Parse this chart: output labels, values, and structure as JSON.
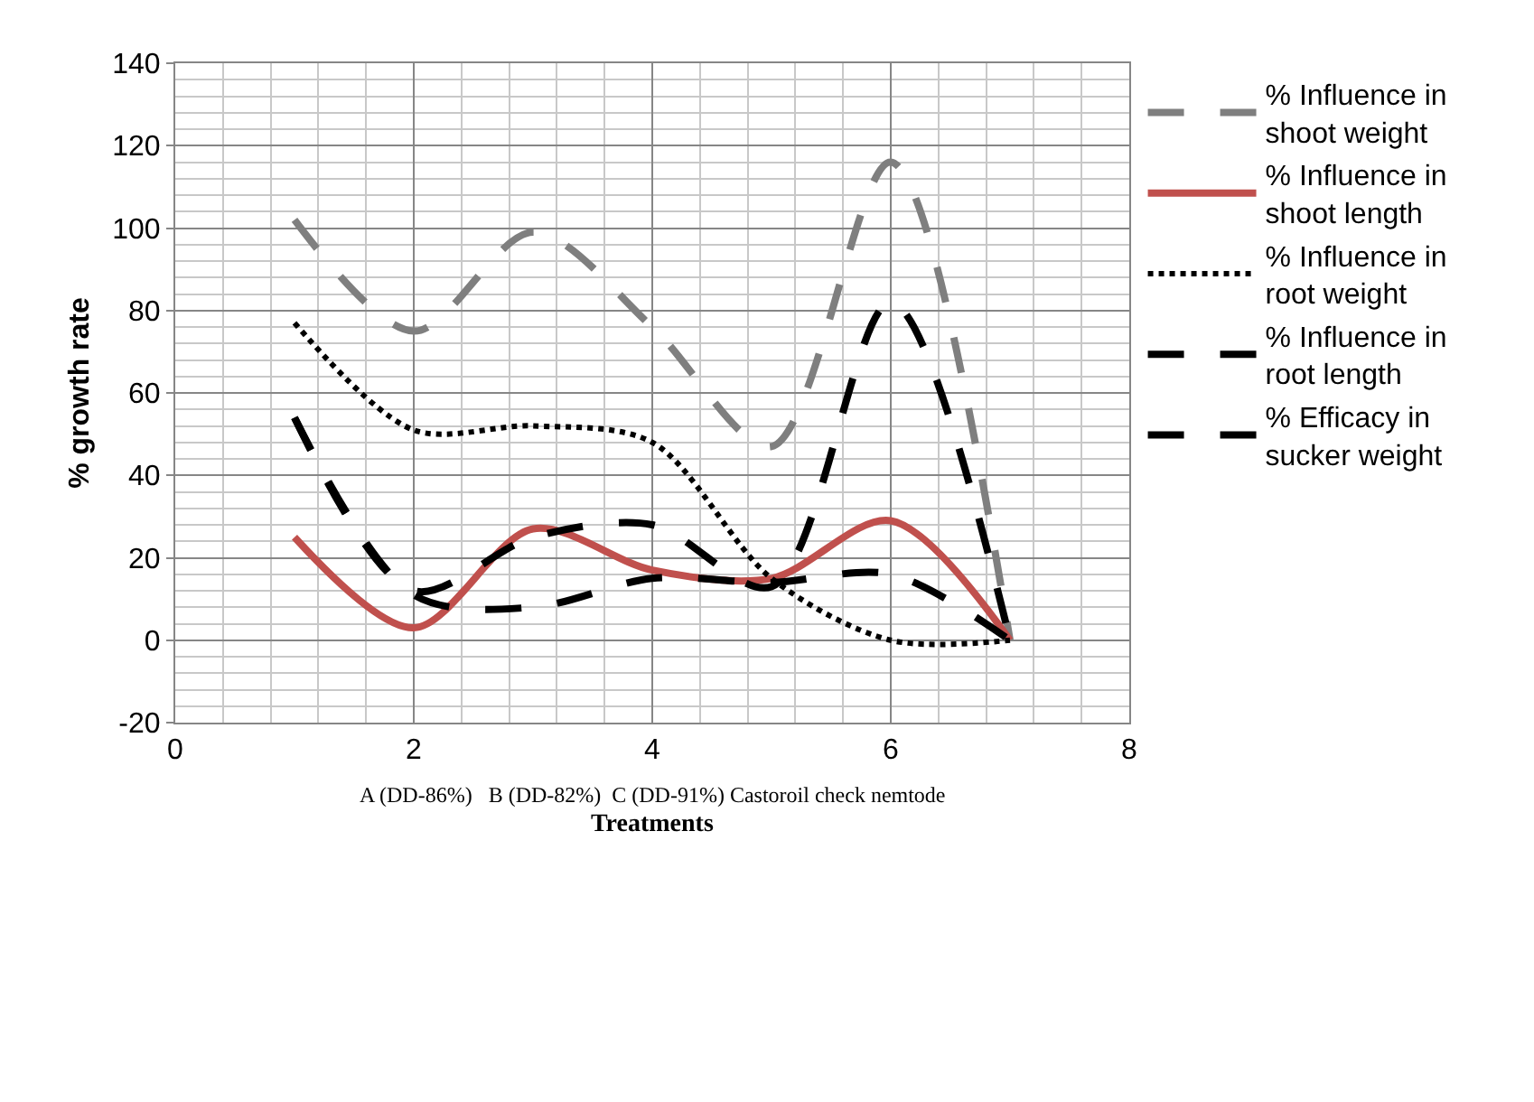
{
  "chart_data": {
    "type": "line",
    "xlabel": "Treatments",
    "ylabel": "% growth rate",
    "x": [
      1,
      2,
      3,
      4,
      5,
      6,
      7
    ],
    "xlim": [
      0,
      8
    ],
    "xticks": [
      0,
      2,
      4,
      6,
      8
    ],
    "ylim": [
      -20,
      140
    ],
    "yticks": [
      -20,
      0,
      20,
      40,
      60,
      80,
      100,
      120,
      140
    ],
    "grid": true,
    "legend": "right",
    "marker": "none",
    "annotations": [
      "A (DD-86%)   B (DD-82%)  C (DD-91%) Castoroil check nemtode"
    ],
    "series": [
      {
        "name": "% Influence in shoot weight",
        "color": "#7f7f7f",
        "line_style": "dashed",
        "values": [
          102,
          75,
          99,
          76,
          47,
          116,
          0
        ]
      },
      {
        "name": "% Influence in shoot length",
        "color": "#c0504d",
        "line_style": "solid",
        "values": [
          25,
          3,
          27,
          17,
          15,
          29,
          0
        ]
      },
      {
        "name": "% Influence in root weight",
        "color": "#000000",
        "line_style": "dotted",
        "values": [
          77,
          51,
          52,
          48,
          15,
          0,
          0
        ]
      },
      {
        "name": "% Influence in root length",
        "color": "#000000",
        "line_style": "dashed",
        "values": [
          54,
          11,
          8,
          15,
          14,
          16,
          0
        ]
      },
      {
        "name": "% Efficacy in sucker weight",
        "color": "#000000",
        "line_style": "dashed",
        "values": [
          54,
          12,
          25,
          28,
          13,
          82,
          0
        ]
      }
    ]
  }
}
